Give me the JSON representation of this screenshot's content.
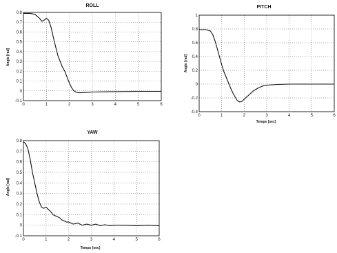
{
  "charts": [
    {
      "title": "ROLL",
      "xlabel": "Temps [sec]",
      "ylabel": "Angle [rad]",
      "xlim": [
        0,
        6
      ],
      "ylim": [
        -0.1,
        0.8
      ],
      "xticks": [
        "0",
        "1",
        "2",
        "3",
        "4",
        "5",
        "6"
      ],
      "yticks": [
        "-0.1",
        "0",
        "0.1",
        "0.2",
        "0.3",
        "0.4",
        "0.5",
        "0.6",
        "0.7",
        "0.8"
      ]
    },
    {
      "title": "PITCH",
      "xlabel": "Temps [sec]",
      "ylabel": "Angle [rad]",
      "xlim": [
        0,
        6
      ],
      "ylim": [
        -0.4,
        1.0
      ],
      "xticks": [
        "0",
        "1",
        "2",
        "3",
        "4",
        "5",
        "6"
      ],
      "yticks": [
        "-0.4",
        "-0.2",
        "0",
        "0.2",
        "0.4",
        "0.6",
        "0.8",
        "1"
      ]
    },
    {
      "title": "YAW",
      "xlabel": "Temps [sec]",
      "ylabel": "Angle [rad]",
      "xlim": [
        0,
        6
      ],
      "ylim": [
        -0.1,
        0.8
      ],
      "xticks": [
        "0",
        "1",
        "2",
        "3",
        "4",
        "5",
        "6"
      ],
      "yticks": [
        "-0.1",
        "0",
        "0.1",
        "0.2",
        "0.3",
        "0.4",
        "0.5",
        "0.6",
        "0.7",
        "0.8"
      ]
    }
  ],
  "chart_data": [
    {
      "type": "line",
      "title": "ROLL",
      "xlabel": "Temps [sec]",
      "ylabel": "Angle [rad]",
      "xlim": [
        0,
        6
      ],
      "ylim": [
        -0.1,
        0.8
      ],
      "grid": true,
      "series": [
        {
          "x": [
            0,
            0.3,
            0.5,
            0.7,
            0.8,
            0.9,
            1.0,
            1.1,
            1.2,
            1.3,
            1.4,
            1.5,
            1.6,
            1.7,
            1.8,
            1.9,
            2.0,
            2.1,
            2.2,
            2.3,
            2.4,
            2.5,
            2.6,
            2.8,
            3.0,
            3.5,
            4.0,
            5.0,
            6.0
          ],
          "y": [
            0.79,
            0.79,
            0.78,
            0.74,
            0.71,
            0.72,
            0.74,
            0.72,
            0.65,
            0.55,
            0.45,
            0.36,
            0.3,
            0.24,
            0.2,
            0.14,
            0.08,
            0.03,
            0.0,
            -0.015,
            -0.02,
            -0.02,
            -0.018,
            -0.015,
            -0.012,
            -0.01,
            -0.008,
            -0.005,
            -0.005
          ]
        }
      ]
    },
    {
      "type": "line",
      "title": "PITCH",
      "xlabel": "Temps [sec]",
      "ylabel": "Angle [rad]",
      "xlim": [
        0,
        6
      ],
      "ylim": [
        -0.4,
        1.0
      ],
      "grid": true,
      "series": [
        {
          "x": [
            0,
            0.3,
            0.5,
            0.6,
            0.7,
            0.8,
            0.9,
            1.0,
            1.1,
            1.2,
            1.3,
            1.4,
            1.5,
            1.6,
            1.7,
            1.8,
            1.9,
            2.0,
            2.2,
            2.4,
            2.6,
            2.8,
            3.0,
            3.5,
            4.0,
            5.0,
            6.0
          ],
          "y": [
            0.79,
            0.79,
            0.77,
            0.72,
            0.63,
            0.52,
            0.4,
            0.28,
            0.18,
            0.1,
            0.02,
            -0.06,
            -0.13,
            -0.19,
            -0.24,
            -0.26,
            -0.25,
            -0.22,
            -0.16,
            -0.1,
            -0.06,
            -0.03,
            -0.015,
            -0.005,
            0.0,
            0.0,
            0.0
          ]
        }
      ]
    },
    {
      "type": "line",
      "title": "YAW",
      "xlabel": "Temps [sec]",
      "ylabel": "Angle [rad]",
      "xlim": [
        0,
        6
      ],
      "ylim": [
        -0.1,
        0.8
      ],
      "grid": true,
      "series": [
        {
          "x": [
            0,
            0.1,
            0.2,
            0.3,
            0.4,
            0.5,
            0.6,
            0.7,
            0.8,
            0.9,
            1.0,
            1.1,
            1.2,
            1.3,
            1.4,
            1.5,
            1.6,
            1.7,
            1.8,
            1.9,
            2.0,
            2.2,
            2.4,
            2.6,
            2.8,
            3.0,
            3.2,
            3.4,
            3.6,
            3.8,
            4.0,
            4.5,
            5.0,
            5.5,
            6.0
          ],
          "y": [
            0.79,
            0.77,
            0.72,
            0.62,
            0.5,
            0.4,
            0.3,
            0.22,
            0.17,
            0.16,
            0.17,
            0.15,
            0.13,
            0.1,
            0.09,
            0.08,
            0.07,
            0.05,
            0.04,
            0.03,
            0.03,
            0.01,
            0.02,
            0.0,
            0.01,
            0.0,
            0.01,
            -0.005,
            0.005,
            -0.005,
            0.0,
            0.0,
            -0.005,
            0.0,
            -0.005
          ]
        }
      ]
    }
  ]
}
